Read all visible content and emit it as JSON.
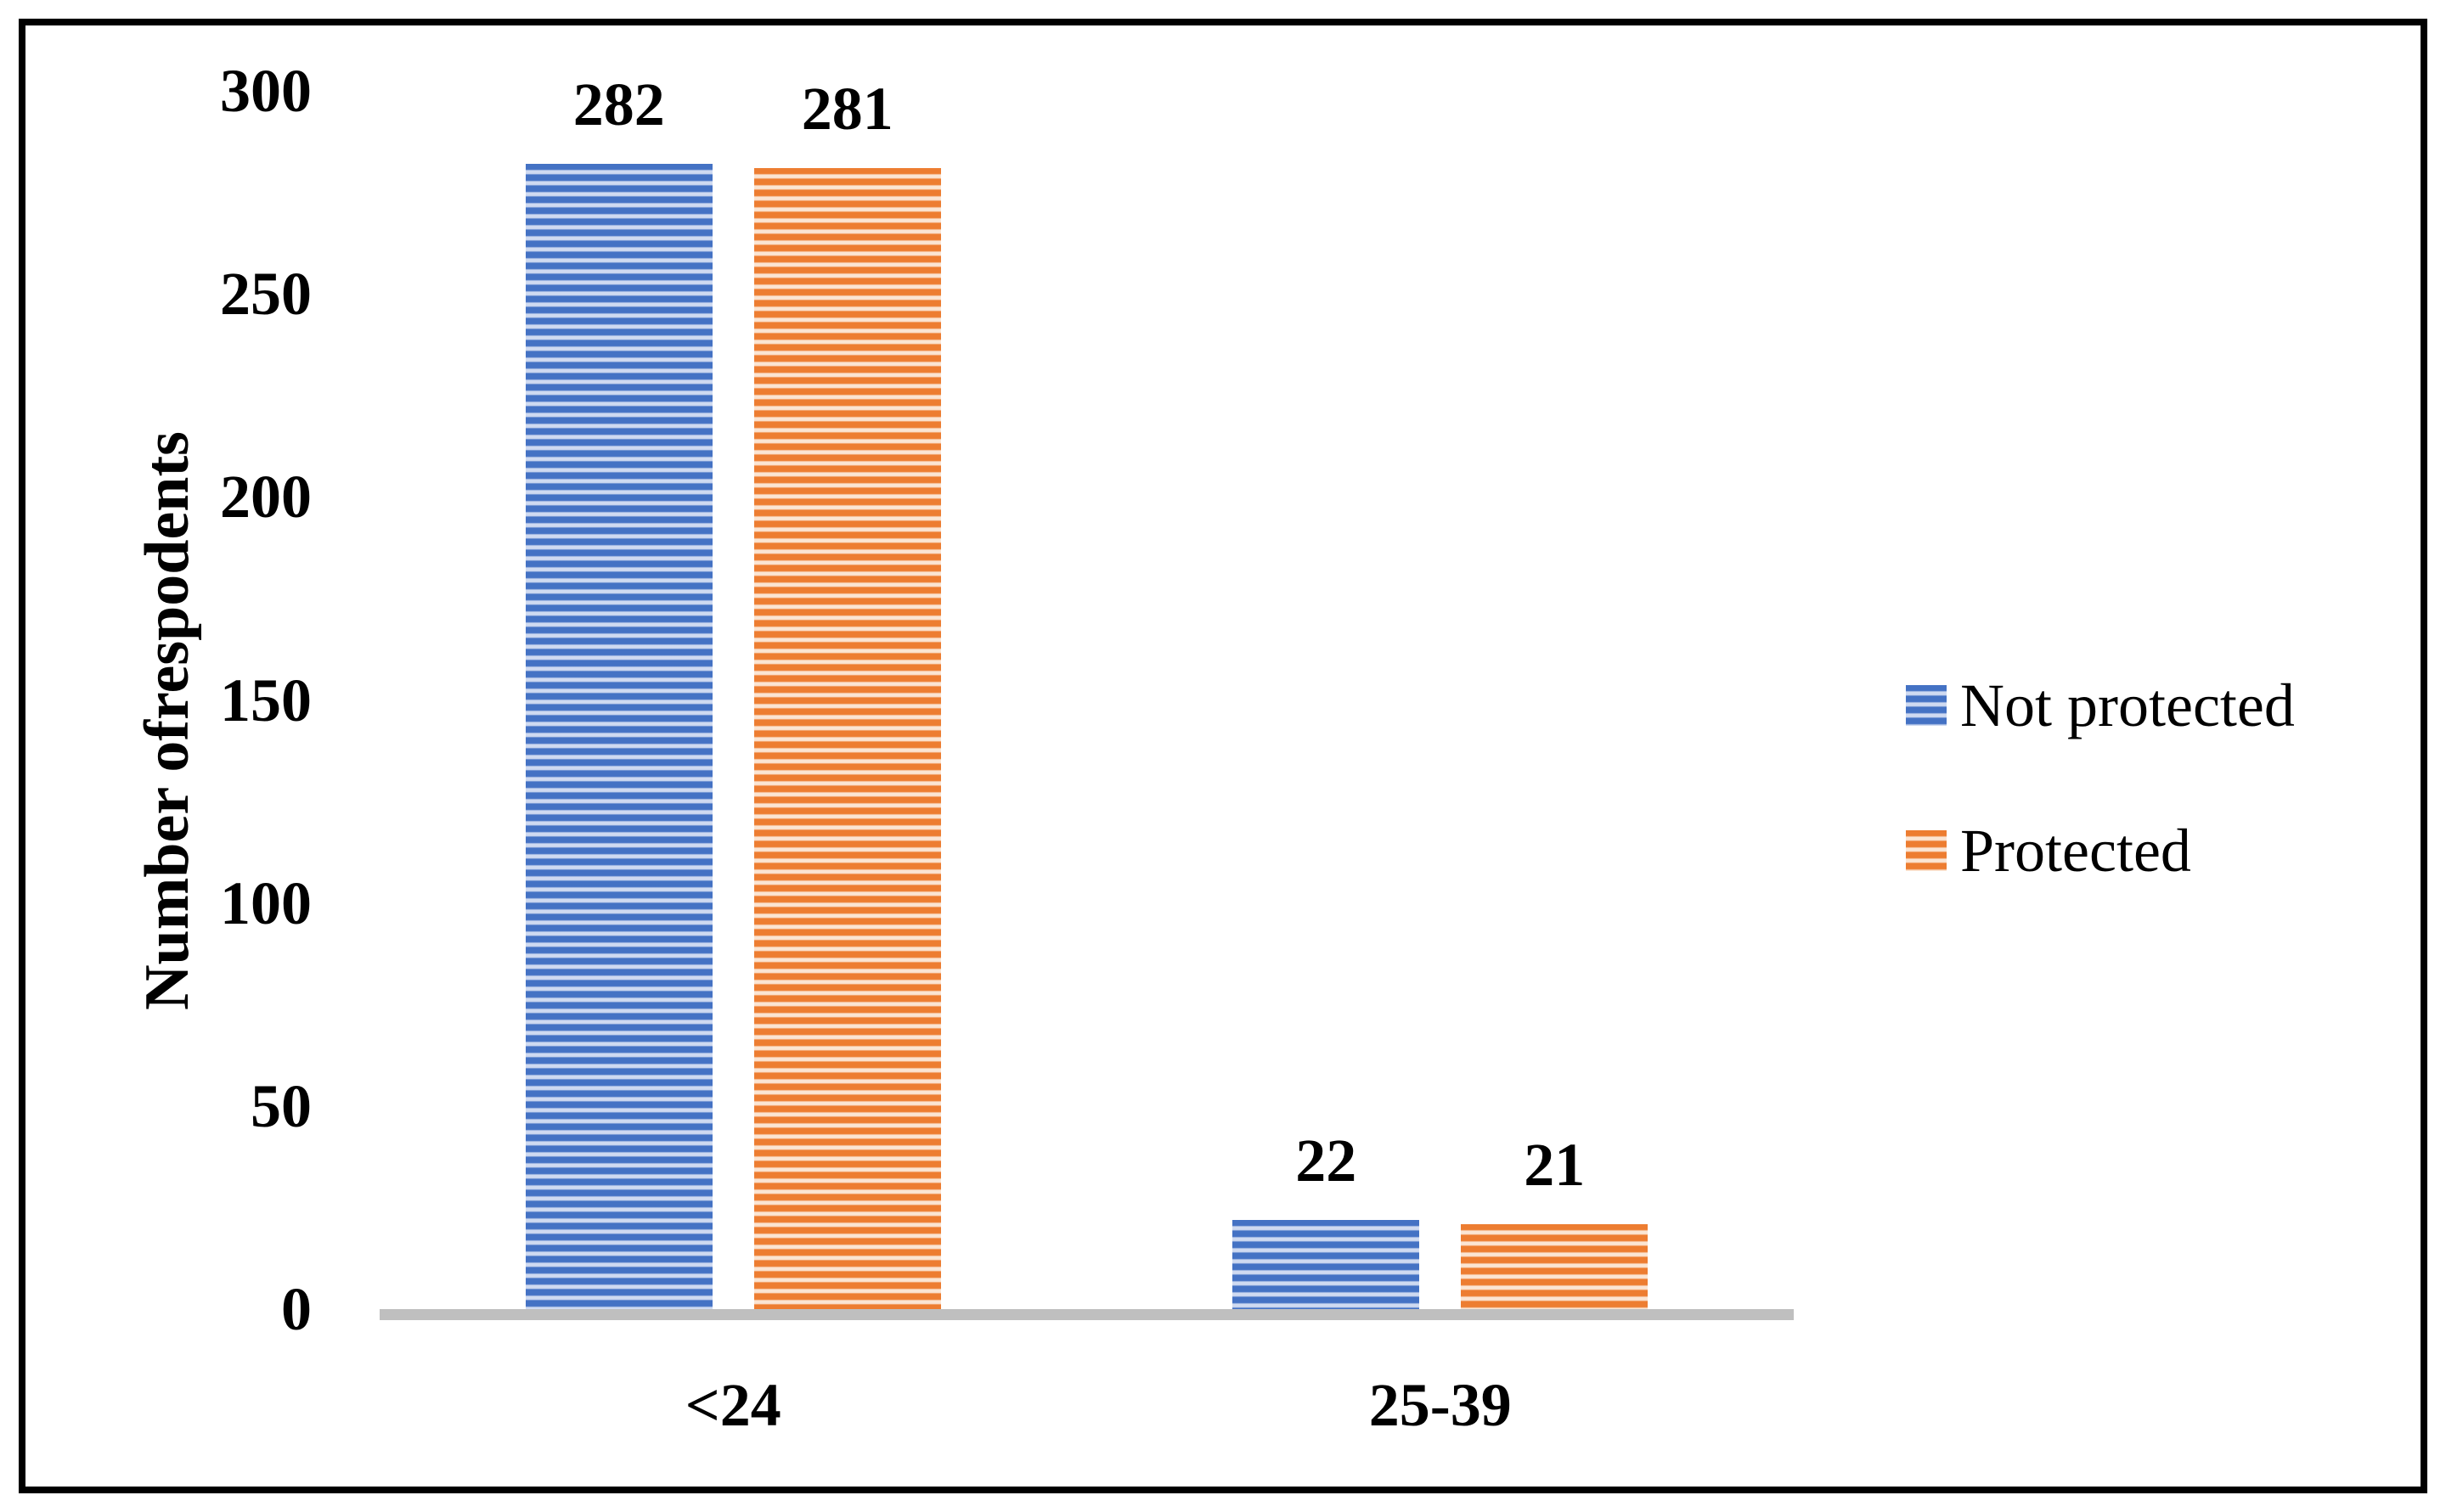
{
  "frame": {
    "border_color": "#000000",
    "background": "#FFFFFF"
  },
  "chart_data": {
    "type": "bar",
    "title": "",
    "xlabel": "",
    "ylabel": "Number ofrespodents",
    "categories": [
      "<24",
      "25-39"
    ],
    "series": [
      {
        "name": "Not protected",
        "values": [
          282,
          22
        ],
        "color": "#4472C4",
        "light_color": "#CFDAF1"
      },
      {
        "name": "Protected",
        "values": [
          281,
          21
        ],
        "color": "#ED7D31",
        "light_color": "#FBE5D3"
      }
    ],
    "data_labels": [
      [
        "282",
        "281"
      ],
      [
        "22",
        "21"
      ]
    ],
    "yticks": [
      "0",
      "50",
      "100",
      "150",
      "200",
      "250",
      "300"
    ],
    "ylim": [
      0,
      300
    ],
    "grid": false,
    "legend_position": "right",
    "bar_pattern": "horizontal-stripes",
    "axis_line_color": "#BFBFBF"
  }
}
